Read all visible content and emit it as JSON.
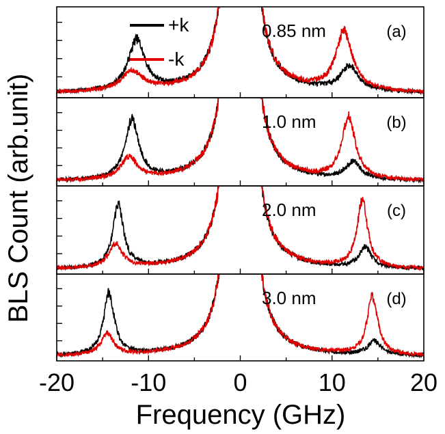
{
  "chart_data": {
    "type": "line",
    "xlabel": "Frequency (GHz)",
    "ylabel": "BLS Count (arb.unit)",
    "xlim": [
      -20,
      20
    ],
    "xticks": [
      -20,
      -10,
      0,
      10,
      20
    ],
    "legend": {
      "placement": "top-left of panel (a)"
    },
    "colors": {
      "+k": "#000000",
      "-k": "#e00000"
    },
    "series_names": [
      "+k",
      "-k"
    ],
    "panels": [
      {
        "letter": "(a)",
        "label": "0.85 nm",
        "series": [
          {
            "name": "+k",
            "peaks": [
              {
                "x": -11.3,
                "amp": 0.62,
                "width": 1.1
              },
              {
                "x": 11.9,
                "amp": 0.3,
                "width": 1.2
              }
            ]
          },
          {
            "name": "-k",
            "peaks": [
              {
                "x": -11.8,
                "amp": 0.24,
                "width": 1.4
              },
              {
                "x": 11.3,
                "amp": 0.72,
                "width": 1.1
              }
            ]
          }
        ]
      },
      {
        "letter": "(b)",
        "label": "1.0 nm",
        "series": [
          {
            "name": "+k",
            "peaks": [
              {
                "x": -11.8,
                "amp": 0.75,
                "width": 0.9
              },
              {
                "x": 12.3,
                "amp": 0.22,
                "width": 1.0
              }
            ]
          },
          {
            "name": "-k",
            "peaks": [
              {
                "x": -12.1,
                "amp": 0.28,
                "width": 1.1
              },
              {
                "x": 11.8,
                "amp": 0.78,
                "width": 0.9
              }
            ]
          }
        ]
      },
      {
        "letter": "(c)",
        "label": "2.0 nm",
        "series": [
          {
            "name": "+k",
            "peaks": [
              {
                "x": -13.3,
                "amp": 0.8,
                "width": 0.7
              },
              {
                "x": 13.6,
                "amp": 0.26,
                "width": 0.8
              }
            ]
          },
          {
            "name": "-k",
            "peaks": [
              {
                "x": -13.6,
                "amp": 0.3,
                "width": 0.9
              },
              {
                "x": 13.3,
                "amp": 0.85,
                "width": 0.7
              }
            ]
          }
        ]
      },
      {
        "letter": "(d)",
        "label": "3.0 nm",
        "series": [
          {
            "name": "+k",
            "peaks": [
              {
                "x": -14.3,
                "amp": 0.8,
                "width": 0.7
              },
              {
                "x": 14.6,
                "amp": 0.18,
                "width": 0.8
              }
            ]
          },
          {
            "name": "-k",
            "peaks": [
              {
                "x": -14.5,
                "amp": 0.28,
                "width": 0.8
              },
              {
                "x": 14.4,
                "amp": 0.75,
                "width": 0.7
              }
            ]
          }
        ]
      }
    ]
  }
}
